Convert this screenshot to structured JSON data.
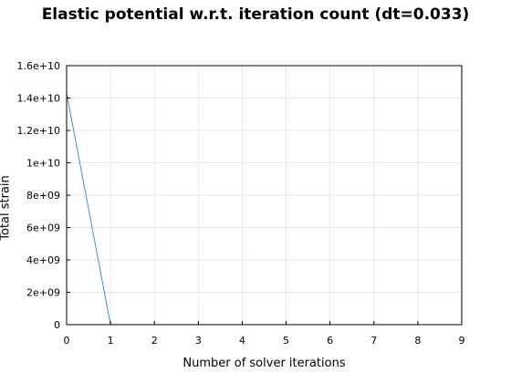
{
  "chart_data": {
    "type": "line",
    "title": "Elastic potential w.r.t. iteration count (dt=0.033)",
    "xlabel": "Number of solver iterations",
    "ylabel": "Total strain",
    "xlim": [
      0,
      9
    ],
    "ylim": [
      0,
      16000000000
    ],
    "x_ticks": [
      0,
      1,
      2,
      3,
      4,
      5,
      6,
      7,
      8,
      9
    ],
    "y_ticks": [
      0,
      2000000000,
      4000000000,
      6000000000,
      8000000000,
      10000000000,
      12000000000,
      14000000000,
      16000000000
    ],
    "x_tick_labels": [
      "0",
      "1",
      "2",
      "3",
      "4",
      "5",
      "6",
      "7",
      "8",
      "9"
    ],
    "y_tick_labels": [
      "0",
      "2e+09",
      "4e+09",
      "6e+09",
      "8e+09",
      "1e+10",
      "1.2e+10",
      "1.4e+10",
      "1.6e+10"
    ],
    "grid": true,
    "legend": "none",
    "series": [
      {
        "color": "#3a96c8",
        "x": [
          0,
          1,
          2,
          3,
          4,
          5,
          6,
          7,
          8,
          9
        ],
        "y": [
          14300000000,
          0,
          0,
          0,
          0,
          0,
          0,
          0,
          0,
          0
        ]
      }
    ],
    "colors": {
      "grid": "#e6e6e6",
      "axis": "#000000",
      "series": "#3a96c8"
    }
  }
}
